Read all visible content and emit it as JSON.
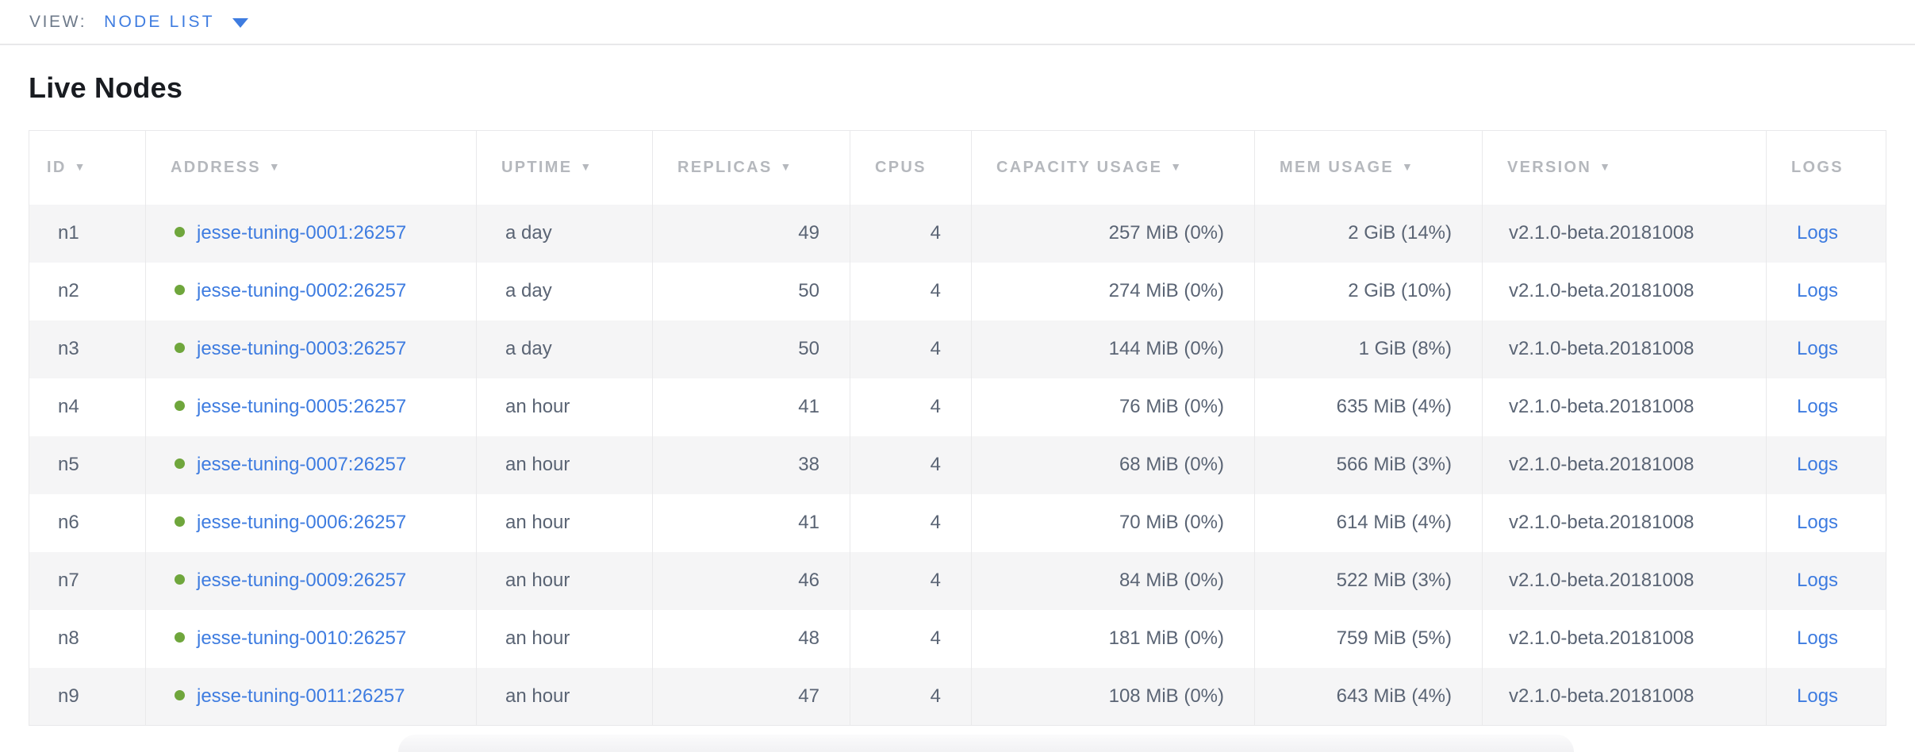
{
  "view_bar": {
    "label": "VIEW:",
    "selected": "NODE LIST"
  },
  "page": {
    "title": "Live Nodes"
  },
  "table": {
    "sort_indicator": "▼",
    "columns": [
      {
        "key": "id",
        "label": "ID",
        "sortable": true
      },
      {
        "key": "address",
        "label": "ADDRESS",
        "sortable": true
      },
      {
        "key": "uptime",
        "label": "UPTIME",
        "sortable": true
      },
      {
        "key": "replicas",
        "label": "REPLICAS",
        "sortable": true
      },
      {
        "key": "cpus",
        "label": "CPUS",
        "sortable": false
      },
      {
        "key": "capacity",
        "label": "CAPACITY USAGE",
        "sortable": true
      },
      {
        "key": "mem",
        "label": "MEM USAGE",
        "sortable": true
      },
      {
        "key": "version",
        "label": "VERSION",
        "sortable": true
      },
      {
        "key": "logs",
        "label": "LOGS",
        "sortable": false
      }
    ],
    "rows": [
      {
        "id": "n1",
        "status": "live",
        "address": "jesse-tuning-0001:26257",
        "uptime": "a day",
        "replicas": "49",
        "cpus": "4",
        "capacity": "257 MiB (0%)",
        "mem": "2 GiB (14%)",
        "version": "v2.1.0-beta.20181008",
        "logs": "Logs"
      },
      {
        "id": "n2",
        "status": "live",
        "address": "jesse-tuning-0002:26257",
        "uptime": "a day",
        "replicas": "50",
        "cpus": "4",
        "capacity": "274 MiB (0%)",
        "mem": "2 GiB (10%)",
        "version": "v2.1.0-beta.20181008",
        "logs": "Logs"
      },
      {
        "id": "n3",
        "status": "live",
        "address": "jesse-tuning-0003:26257",
        "uptime": "a day",
        "replicas": "50",
        "cpus": "4",
        "capacity": "144 MiB (0%)",
        "mem": "1 GiB (8%)",
        "version": "v2.1.0-beta.20181008",
        "logs": "Logs"
      },
      {
        "id": "n4",
        "status": "live",
        "address": "jesse-tuning-0005:26257",
        "uptime": "an hour",
        "replicas": "41",
        "cpus": "4",
        "capacity": "76 MiB (0%)",
        "mem": "635 MiB (4%)",
        "version": "v2.1.0-beta.20181008",
        "logs": "Logs"
      },
      {
        "id": "n5",
        "status": "live",
        "address": "jesse-tuning-0007:26257",
        "uptime": "an hour",
        "replicas": "38",
        "cpus": "4",
        "capacity": "68 MiB (0%)",
        "mem": "566 MiB (3%)",
        "version": "v2.1.0-beta.20181008",
        "logs": "Logs"
      },
      {
        "id": "n6",
        "status": "live",
        "address": "jesse-tuning-0006:26257",
        "uptime": "an hour",
        "replicas": "41",
        "cpus": "4",
        "capacity": "70 MiB (0%)",
        "mem": "614 MiB (4%)",
        "version": "v2.1.0-beta.20181008",
        "logs": "Logs"
      },
      {
        "id": "n7",
        "status": "live",
        "address": "jesse-tuning-0009:26257",
        "uptime": "an hour",
        "replicas": "46",
        "cpus": "4",
        "capacity": "84 MiB (0%)",
        "mem": "522 MiB (3%)",
        "version": "v2.1.0-beta.20181008",
        "logs": "Logs"
      },
      {
        "id": "n8",
        "status": "live",
        "address": "jesse-tuning-0010:26257",
        "uptime": "an hour",
        "replicas": "48",
        "cpus": "4",
        "capacity": "181 MiB (0%)",
        "mem": "759 MiB (5%)",
        "version": "v2.1.0-beta.20181008",
        "logs": "Logs"
      },
      {
        "id": "n9",
        "status": "live",
        "address": "jesse-tuning-0011:26257",
        "uptime": "an hour",
        "replicas": "47",
        "cpus": "4",
        "capacity": "108 MiB (0%)",
        "mem": "643 MiB (4%)",
        "version": "v2.1.0-beta.20181008",
        "logs": "Logs"
      }
    ]
  },
  "colors": {
    "link_blue": "#3e7ce0",
    "node_live_green": "#6fa63c",
    "header_gray": "#b5b8bd",
    "cell_text": "#5a6474",
    "row_stripe": "#f5f5f6"
  }
}
